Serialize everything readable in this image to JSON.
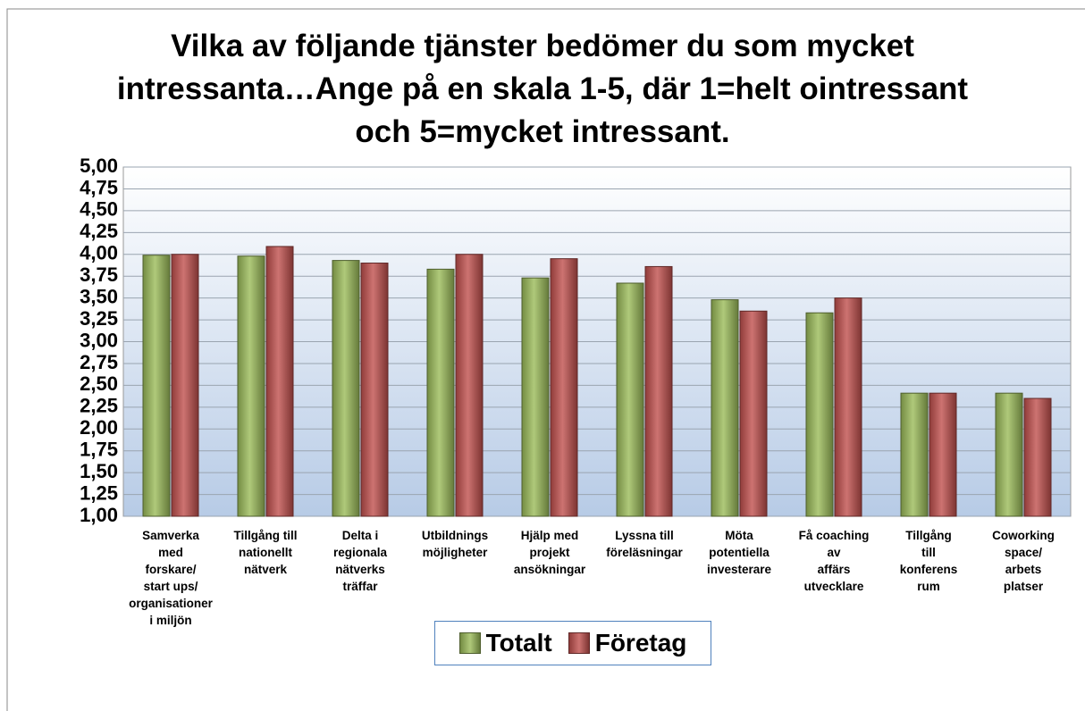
{
  "chart_data": {
    "type": "bar",
    "title": "Vilka av följande tjänster bedömer du som mycket\nintressanta…Ange på en skala 1-5, där 1=helt ointressant\noch 5=mycket intressant.",
    "categories": [
      "Samverka\nmed\nforskare/\nstart ups/\norganisationer\ni miljön",
      "Tillgång till\nnationellt\nnätverk",
      "Delta i\nregionala\nnätverks\nträffar",
      "Utbildnings\nmöjligheter",
      "Hjälp med\nprojekt\nansökningar",
      "Lyssna till\nföreläsningar",
      "Möta\npotentiella\ninvesterare",
      "Få coaching\nav\naffärs\nutvecklare",
      "Tillgång\ntill\nkonferens\nrum",
      "Coworking\nspace/\narbets\nplatser"
    ],
    "series": [
      {
        "name": "Totalt",
        "color": "#9bbb59",
        "values": [
          3.99,
          3.98,
          3.93,
          3.83,
          3.73,
          3.67,
          3.48,
          3.33,
          2.41,
          2.41
        ]
      },
      {
        "name": "Företag",
        "color": "#c0504d",
        "values": [
          4.0,
          4.09,
          3.9,
          4.0,
          3.95,
          3.86,
          3.35,
          3.5,
          2.41,
          2.35
        ]
      }
    ],
    "ylim": [
      1,
      5
    ],
    "yticks": [
      {
        "value": 1,
        "label": "1,00"
      },
      {
        "value": 1.25,
        "label": "1,25"
      },
      {
        "value": 1.5,
        "label": "1,50"
      },
      {
        "value": 1.75,
        "label": "1,75"
      },
      {
        "value": 2,
        "label": "2,00"
      },
      {
        "value": 2.25,
        "label": "2,25"
      },
      {
        "value": 2.5,
        "label": "2,50"
      },
      {
        "value": 2.75,
        "label": "2,75"
      },
      {
        "value": 3,
        "label": "3,00"
      },
      {
        "value": 3.25,
        "label": "3,25"
      },
      {
        "value": 3.5,
        "label": "3,50"
      },
      {
        "value": 3.75,
        "label": "3,75"
      },
      {
        "value": 4,
        "label": "4,00"
      },
      {
        "value": 4.25,
        "label": "4,25"
      },
      {
        "value": 4.5,
        "label": "4,50"
      },
      {
        "value": 4.75,
        "label": "4,75"
      },
      {
        "value": 5,
        "label": "5,00"
      }
    ],
    "grid": true,
    "legend": "bottom"
  }
}
